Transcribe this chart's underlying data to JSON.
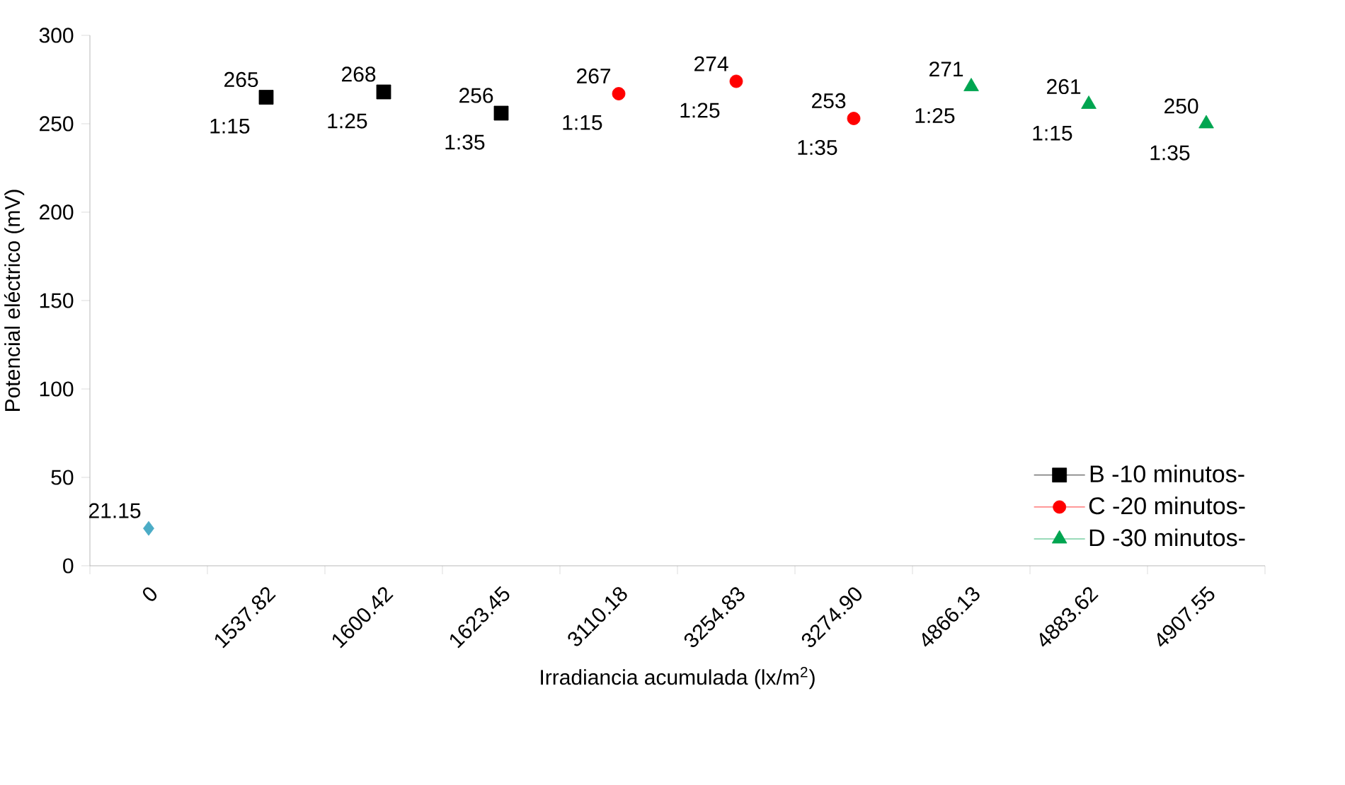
{
  "chart_data": {
    "type": "scatter",
    "xlabel": "Irradiancia acumulada (lx/m$^{2}$)",
    "ylabel": "Potencial eléctrico (mV)",
    "categories": [
      "0",
      "1537.82",
      "1600.42",
      "1623.45",
      "3110.18",
      "3254.83",
      "3274.90",
      "4866.13",
      "4883.62",
      "4907.55"
    ],
    "series": [
      {
        "color": "#4bacc6",
        "marker": "diamond",
        "values": [
          21.15,
          null,
          null,
          null,
          null,
          null,
          null,
          null,
          null,
          null
        ]
      },
      {
        "name": "B -10 minutos-",
        "color": "#000000",
        "marker": "square",
        "values": [
          null,
          265,
          268,
          256,
          null,
          null,
          null,
          null,
          null,
          null
        ]
      },
      {
        "name": "C -20 minutos-",
        "color": "#ff0000",
        "marker": "circle",
        "values": [
          null,
          null,
          null,
          null,
          267,
          274,
          253,
          null,
          null,
          null
        ]
      },
      {
        "name": "D -30 minutos-",
        "color": "#00a550",
        "marker": "triangle",
        "values": [
          null,
          null,
          null,
          null,
          null,
          null,
          null,
          271,
          261,
          250
        ]
      }
    ],
    "ylim": [
      0,
      300
    ],
    "yticks": [
      0,
      50,
      100,
      150,
      200,
      250,
      300
    ],
    "data_labels": true,
    "legend": "bottom right",
    "annotations": [
      {
        "text": "1:15",
        "x": "1537.82",
        "y": 265
      },
      {
        "text": "1:25",
        "x": "1600.42",
        "y": 268
      },
      {
        "text": "1:35",
        "x": "1623.45",
        "y": 256
      },
      {
        "text": "1:15",
        "x": "3110.18",
        "y": 267
      },
      {
        "text": "1:25",
        "x": "3254.83",
        "y": 274
      },
      {
        "text": "1:35",
        "x": "3274.90",
        "y": 253
      },
      {
        "text": "1:25",
        "x": "4866.13",
        "y": 271
      },
      {
        "text": "1:15",
        "x": "4883.62",
        "y": 261
      },
      {
        "text": "1:35",
        "x": "4907.55",
        "y": 250
      }
    ]
  }
}
